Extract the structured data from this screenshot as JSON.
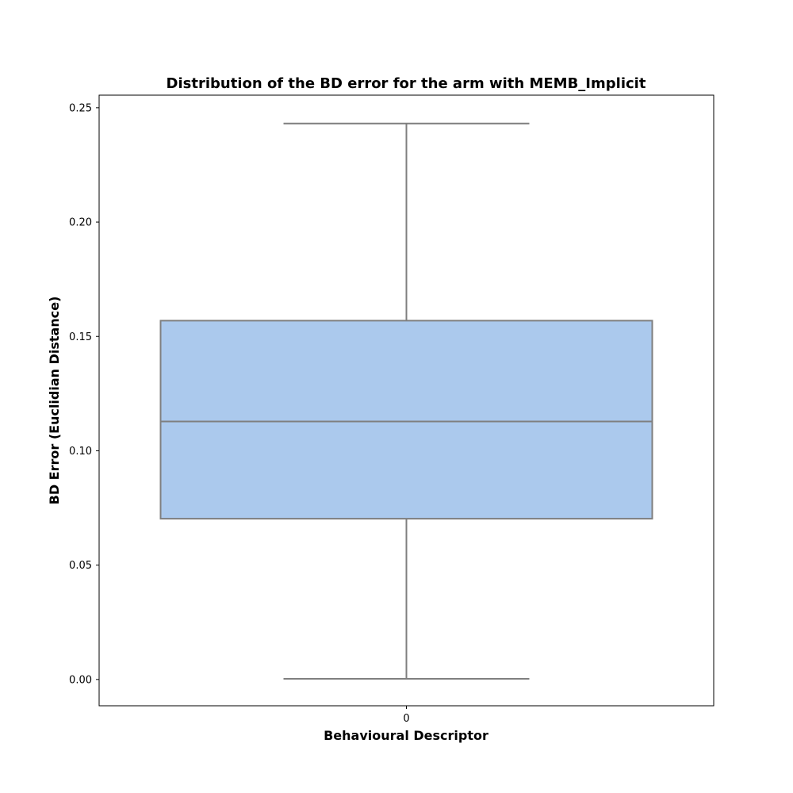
{
  "chart_data": {
    "type": "box",
    "title": "Distribution of the BD error for the arm with MEMB_Implicit",
    "xlabel": "Behavioural Descriptor",
    "ylabel": "BD Error (Euclidian Distance)",
    "categories": [
      "0"
    ],
    "ylim": [
      -0.0115,
      0.2555
    ],
    "yticks": [
      0.0,
      0.05,
      0.1,
      0.15,
      0.2,
      0.25
    ],
    "ytick_labels": [
      "0.00",
      "0.05",
      "0.10",
      "0.15",
      "0.20",
      "0.25"
    ],
    "boxes": [
      {
        "category": "0",
        "whisker_low": 0.0003,
        "q1": 0.0703,
        "median": 0.1128,
        "q3": 0.1569,
        "whisker_high": 0.2431
      }
    ],
    "grid": false,
    "colors": {
      "box_fill": "#abc9ed",
      "box_edge": "#7f7f7f"
    }
  }
}
